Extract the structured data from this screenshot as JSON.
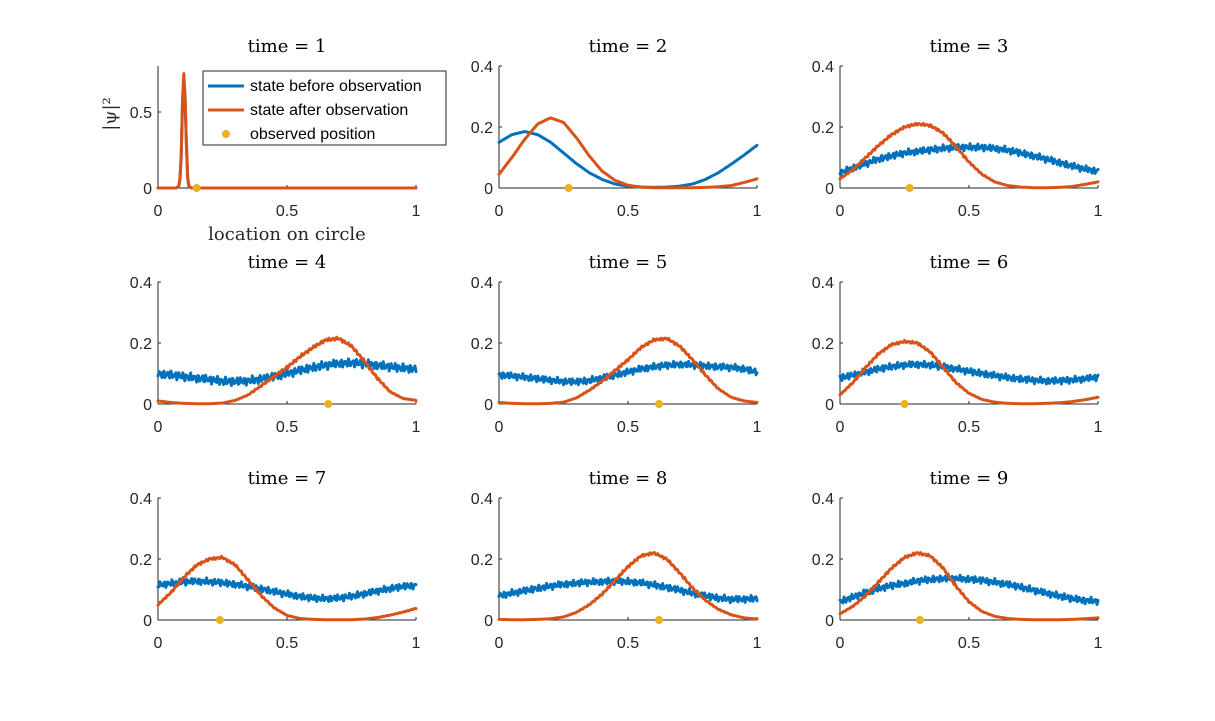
{
  "chart_data": [
    {
      "type": "line",
      "title": "time = 1",
      "xlabel": "location on circle",
      "ylabel": "|ψ|²",
      "xlim": [
        0,
        1
      ],
      "ylim": [
        0,
        0.8
      ],
      "xticks": [
        "0",
        "0.5",
        "1"
      ],
      "yticks": [
        "0",
        "0.5"
      ],
      "x": [
        0,
        0.05,
        0.07,
        0.08,
        0.085,
        0.09,
        0.095,
        0.1,
        0.105,
        0.11,
        0.115,
        0.12,
        0.13,
        0.2,
        0.5,
        1
      ],
      "series": [
        {
          "name": "state before observation",
          "values": [
            0,
            0,
            0,
            0.01,
            0.05,
            0.2,
            0.55,
            0.71,
            0.58,
            0.28,
            0.06,
            0.01,
            0,
            0,
            0,
            0
          ]
        },
        {
          "name": "state after observation",
          "values": [
            0,
            0,
            0,
            0.01,
            0.06,
            0.22,
            0.58,
            0.75,
            0.6,
            0.3,
            0.07,
            0.01,
            0,
            0,
            0,
            0
          ]
        }
      ],
      "observed": [
        {
          "name": "observed position",
          "x": 0.15,
          "y": 0
        }
      ],
      "legend": "top-right",
      "legend_entries": [
        "state before observation",
        "state after observation",
        "observed position"
      ]
    },
    {
      "type": "line",
      "title": "time = 2",
      "xlim": [
        0,
        1
      ],
      "ylim": [
        0,
        0.4
      ],
      "xticks": [
        "0",
        "0.5",
        "1"
      ],
      "yticks": [
        "0",
        "0.2",
        "0.4"
      ],
      "x": [
        0,
        0.05,
        0.1,
        0.15,
        0.2,
        0.25,
        0.3,
        0.35,
        0.4,
        0.45,
        0.5,
        0.55,
        0.6,
        0.65,
        0.7,
        0.75,
        0.8,
        0.85,
        0.9,
        0.95,
        1
      ],
      "series": [
        {
          "name": "state before observation",
          "values": [
            0.15,
            0.175,
            0.185,
            0.175,
            0.15,
            0.115,
            0.08,
            0.05,
            0.028,
            0.013,
            0.006,
            0.003,
            0.002,
            0.003,
            0.006,
            0.013,
            0.028,
            0.05,
            0.078,
            0.108,
            0.14
          ]
        },
        {
          "name": "state after observation",
          "values": [
            0.045,
            0.1,
            0.16,
            0.21,
            0.23,
            0.215,
            0.165,
            0.105,
            0.055,
            0.025,
            0.009,
            0.003,
            0.001,
            0.001,
            0.001,
            0.001,
            0.002,
            0.004,
            0.008,
            0.018,
            0.03
          ]
        }
      ],
      "observed": [
        {
          "name": "observed position",
          "x": 0.27,
          "y": 0
        }
      ]
    },
    {
      "type": "line",
      "title": "time = 3",
      "xlim": [
        0,
        1
      ],
      "ylim": [
        0,
        0.4
      ],
      "xticks": [
        "0",
        "0.5",
        "1"
      ],
      "yticks": [
        "0",
        "0.2",
        "0.4"
      ],
      "x": [
        0,
        0.05,
        0.1,
        0.15,
        0.2,
        0.25,
        0.3,
        0.35,
        0.4,
        0.45,
        0.5,
        0.55,
        0.6,
        0.65,
        0.7,
        0.75,
        0.8,
        0.85,
        0.9,
        0.95,
        1
      ],
      "series": [
        {
          "name": "state before observation",
          "values": [
            0.05,
            0.065,
            0.08,
            0.095,
            0.105,
            0.115,
            0.12,
            0.125,
            0.13,
            0.133,
            0.134,
            0.133,
            0.13,
            0.124,
            0.115,
            0.105,
            0.095,
            0.083,
            0.072,
            0.062,
            0.055
          ]
        },
        {
          "name": "state after observation",
          "values": [
            0.03,
            0.06,
            0.1,
            0.14,
            0.175,
            0.2,
            0.21,
            0.205,
            0.18,
            0.135,
            0.085,
            0.045,
            0.02,
            0.008,
            0.003,
            0.001,
            0.001,
            0.002,
            0.005,
            0.012,
            0.02
          ]
        }
      ],
      "observed": [
        {
          "name": "observed position",
          "x": 0.27,
          "y": 0
        }
      ]
    },
    {
      "type": "line",
      "title": "time = 4",
      "xlim": [
        0,
        1
      ],
      "ylim": [
        0,
        0.4
      ],
      "xticks": [
        "0",
        "0.5",
        "1"
      ],
      "yticks": [
        "0",
        "0.2",
        "0.4"
      ],
      "x": [
        0,
        0.05,
        0.1,
        0.15,
        0.2,
        0.25,
        0.3,
        0.35,
        0.4,
        0.45,
        0.5,
        0.55,
        0.6,
        0.65,
        0.7,
        0.75,
        0.8,
        0.85,
        0.9,
        0.95,
        1
      ],
      "series": [
        {
          "name": "state before observation",
          "values": [
            0.1,
            0.095,
            0.09,
            0.085,
            0.08,
            0.075,
            0.074,
            0.076,
            0.082,
            0.09,
            0.1,
            0.11,
            0.12,
            0.127,
            0.133,
            0.135,
            0.132,
            0.127,
            0.122,
            0.118,
            0.115
          ]
        },
        {
          "name": "state after observation",
          "values": [
            0.01,
            0.005,
            0.002,
            0.001,
            0.001,
            0.003,
            0.012,
            0.03,
            0.06,
            0.09,
            0.12,
            0.155,
            0.185,
            0.21,
            0.215,
            0.19,
            0.14,
            0.085,
            0.04,
            0.018,
            0.012
          ]
        }
      ],
      "observed": [
        {
          "name": "observed position",
          "x": 0.66,
          "y": 0
        }
      ]
    },
    {
      "type": "line",
      "title": "time = 5",
      "xlim": [
        0,
        1
      ],
      "ylim": [
        0,
        0.4
      ],
      "xticks": [
        "0",
        "0.5",
        "1"
      ],
      "yticks": [
        "0",
        "0.2",
        "0.4"
      ],
      "x": [
        0,
        0.05,
        0.1,
        0.15,
        0.2,
        0.25,
        0.3,
        0.35,
        0.4,
        0.45,
        0.5,
        0.55,
        0.6,
        0.65,
        0.7,
        0.75,
        0.8,
        0.85,
        0.9,
        0.95,
        1
      ],
      "series": [
        {
          "name": "state before observation",
          "values": [
            0.095,
            0.092,
            0.088,
            0.083,
            0.078,
            0.074,
            0.073,
            0.077,
            0.085,
            0.095,
            0.105,
            0.115,
            0.122,
            0.127,
            0.13,
            0.128,
            0.125,
            0.122,
            0.12,
            0.115,
            0.105
          ]
        },
        {
          "name": "state after observation",
          "values": [
            0.005,
            0.002,
            0.001,
            0.001,
            0.002,
            0.006,
            0.02,
            0.045,
            0.075,
            0.11,
            0.145,
            0.185,
            0.21,
            0.215,
            0.19,
            0.145,
            0.095,
            0.05,
            0.022,
            0.01,
            0.005
          ]
        }
      ],
      "observed": [
        {
          "name": "observed position",
          "x": 0.62,
          "y": 0
        }
      ]
    },
    {
      "type": "line",
      "title": "time = 6",
      "xlim": [
        0,
        1
      ],
      "ylim": [
        0,
        0.4
      ],
      "xticks": [
        "0",
        "0.5",
        "1"
      ],
      "yticks": [
        "0",
        "0.2",
        "0.4"
      ],
      "x": [
        0,
        0.05,
        0.1,
        0.15,
        0.2,
        0.25,
        0.3,
        0.35,
        0.4,
        0.45,
        0.5,
        0.55,
        0.6,
        0.65,
        0.7,
        0.75,
        0.8,
        0.85,
        0.9,
        0.95,
        1
      ],
      "series": [
        {
          "name": "state before observation",
          "values": [
            0.085,
            0.095,
            0.105,
            0.115,
            0.123,
            0.128,
            0.13,
            0.128,
            0.122,
            0.115,
            0.107,
            0.1,
            0.093,
            0.087,
            0.082,
            0.078,
            0.076,
            0.076,
            0.079,
            0.083,
            0.088
          ]
        },
        {
          "name": "state after observation",
          "values": [
            0.03,
            0.07,
            0.12,
            0.165,
            0.195,
            0.205,
            0.2,
            0.17,
            0.12,
            0.07,
            0.035,
            0.015,
            0.006,
            0.002,
            0.001,
            0.001,
            0.002,
            0.004,
            0.008,
            0.014,
            0.022
          ]
        }
      ],
      "observed": [
        {
          "name": "observed position",
          "x": 0.25,
          "y": 0
        }
      ]
    },
    {
      "type": "line",
      "title": "time = 7",
      "xlim": [
        0,
        1
      ],
      "ylim": [
        0,
        0.4
      ],
      "xticks": [
        "0",
        "0.5",
        "1"
      ],
      "yticks": [
        "0",
        "0.2",
        "0.4"
      ],
      "x": [
        0,
        0.05,
        0.1,
        0.15,
        0.2,
        0.25,
        0.3,
        0.35,
        0.4,
        0.45,
        0.5,
        0.55,
        0.6,
        0.65,
        0.7,
        0.75,
        0.8,
        0.85,
        0.9,
        0.95,
        1
      ],
      "series": [
        {
          "name": "state before observation",
          "values": [
            0.115,
            0.12,
            0.125,
            0.127,
            0.126,
            0.122,
            0.117,
            0.11,
            0.102,
            0.093,
            0.085,
            0.077,
            0.072,
            0.07,
            0.072,
            0.078,
            0.086,
            0.095,
            0.103,
            0.11,
            0.113
          ]
        },
        {
          "name": "state after observation",
          "values": [
            0.05,
            0.09,
            0.14,
            0.18,
            0.2,
            0.205,
            0.18,
            0.13,
            0.08,
            0.04,
            0.015,
            0.005,
            0.002,
            0.001,
            0.001,
            0.001,
            0.003,
            0.008,
            0.016,
            0.026,
            0.038
          ]
        }
      ],
      "observed": [
        {
          "name": "observed position",
          "x": 0.24,
          "y": 0
        }
      ]
    },
    {
      "type": "line",
      "title": "time = 8",
      "xlim": [
        0,
        1
      ],
      "ylim": [
        0,
        0.4
      ],
      "xticks": [
        "0",
        "0.5",
        "1"
      ],
      "yticks": [
        "0",
        "0.2",
        "0.4"
      ],
      "x": [
        0,
        0.05,
        0.1,
        0.15,
        0.2,
        0.25,
        0.3,
        0.35,
        0.4,
        0.45,
        0.5,
        0.55,
        0.6,
        0.65,
        0.7,
        0.75,
        0.8,
        0.85,
        0.9,
        0.95,
        1
      ],
      "series": [
        {
          "name": "state before observation",
          "values": [
            0.08,
            0.088,
            0.096,
            0.104,
            0.111,
            0.117,
            0.121,
            0.124,
            0.126,
            0.127,
            0.126,
            0.122,
            0.115,
            0.107,
            0.098,
            0.088,
            0.079,
            0.072,
            0.068,
            0.068,
            0.072
          ]
        },
        {
          "name": "state after observation",
          "values": [
            0.002,
            0.001,
            0.001,
            0.002,
            0.004,
            0.01,
            0.025,
            0.05,
            0.085,
            0.13,
            0.175,
            0.21,
            0.22,
            0.2,
            0.155,
            0.105,
            0.065,
            0.035,
            0.017,
            0.007,
            0.003
          ]
        }
      ],
      "observed": [
        {
          "name": "observed position",
          "x": 0.62,
          "y": 0
        }
      ]
    },
    {
      "type": "line",
      "title": "time = 9",
      "xlim": [
        0,
        1
      ],
      "ylim": [
        0,
        0.4
      ],
      "xticks": [
        "0",
        "0.5",
        "1"
      ],
      "yticks": [
        "0",
        "0.2",
        "0.4"
      ],
      "x": [
        0,
        0.05,
        0.1,
        0.15,
        0.2,
        0.25,
        0.3,
        0.35,
        0.4,
        0.45,
        0.5,
        0.55,
        0.6,
        0.65,
        0.7,
        0.75,
        0.8,
        0.85,
        0.9,
        0.95,
        1
      ],
      "series": [
        {
          "name": "state before observation",
          "values": [
            0.06,
            0.075,
            0.09,
            0.103,
            0.113,
            0.12,
            0.128,
            0.133,
            0.136,
            0.136,
            0.134,
            0.13,
            0.124,
            0.117,
            0.108,
            0.098,
            0.088,
            0.079,
            0.07,
            0.064,
            0.062
          ]
        },
        {
          "name": "state after observation",
          "values": [
            0.02,
            0.045,
            0.08,
            0.125,
            0.17,
            0.205,
            0.22,
            0.21,
            0.17,
            0.11,
            0.06,
            0.028,
            0.012,
            0.005,
            0.002,
            0.001,
            0.001,
            0.001,
            0.002,
            0.004,
            0.007
          ]
        }
      ],
      "observed": [
        {
          "name": "observed position",
          "x": 0.31,
          "y": 0
        }
      ]
    }
  ],
  "colors": {
    "before": "#0072BD",
    "after": "#D95319",
    "observed": "#EDB120",
    "axis": "#262626"
  }
}
